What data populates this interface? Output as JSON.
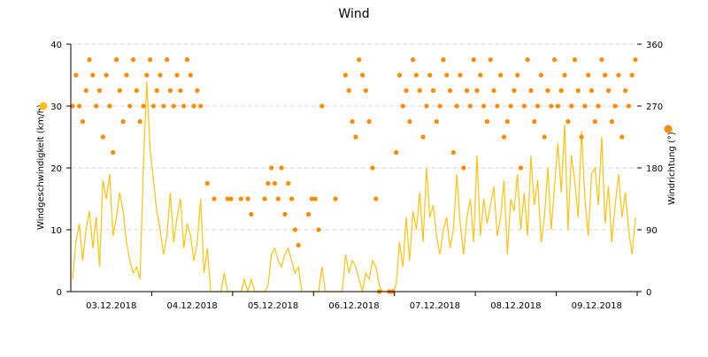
{
  "chart_data": {
    "type": "line",
    "title": "Wind",
    "x_start": "03.12.2018 00:00",
    "x_interval": "1h",
    "x_tick_labels": [
      "03.12.2018",
      "04.12.2018",
      "05.12.2018",
      "06.12.2018",
      "07.12.2018",
      "08.12.2018",
      "09.12.2018"
    ],
    "grid": "horizontal dashed",
    "legend": "beside axis titles",
    "y_left": {
      "label": "Windgeschwindigkeit (km/h)",
      "range": [
        0,
        40
      ],
      "ticks": [
        "0",
        "10",
        "20",
        "30",
        "40"
      ]
    },
    "y_right": {
      "label": "Windrichtung (°)",
      "range": [
        0,
        360
      ],
      "ticks": [
        "0",
        "90",
        "180",
        "270",
        "360"
      ]
    },
    "series": [
      {
        "name": "Windgeschwindigkeit (km/h)",
        "type": "line",
        "axis": "left",
        "color": "#FFC20E",
        "values": [
          2,
          8,
          11,
          5,
          10,
          13,
          7,
          12,
          4,
          18,
          15,
          19,
          9,
          12,
          16,
          13,
          8,
          5,
          3,
          4,
          2,
          20,
          34,
          23,
          18,
          13,
          10,
          6,
          9,
          16,
          8,
          12,
          15,
          7,
          11,
          9,
          5,
          8,
          15,
          3,
          7,
          0,
          0,
          0,
          0,
          3,
          0,
          0,
          0,
          0,
          0,
          2,
          0,
          2,
          0,
          0,
          0,
          0,
          1,
          6,
          7,
          5,
          4,
          6,
          7,
          5,
          3,
          4,
          0,
          0,
          0,
          0,
          0,
          0,
          4,
          0,
          0,
          0,
          0,
          0,
          0,
          6,
          3,
          5,
          4,
          2,
          0,
          3,
          2,
          5,
          4,
          1,
          0,
          0,
          0,
          0,
          1,
          8,
          4,
          12,
          5,
          13,
          10,
          16,
          8,
          20,
          12,
          14,
          9,
          6,
          10,
          12,
          7,
          10,
          19,
          11,
          6,
          12,
          15,
          8,
          22,
          9,
          15,
          11,
          14,
          17,
          9,
          12,
          18,
          6,
          15,
          13,
          19,
          10,
          16,
          9,
          22,
          14,
          18,
          8,
          12,
          20,
          10,
          17,
          24,
          16,
          27,
          10,
          22,
          18,
          12,
          26,
          15,
          9,
          19,
          20,
          14,
          25,
          11,
          17,
          8,
          14,
          19,
          12,
          16,
          10,
          6,
          12
        ]
      },
      {
        "name": "Windrichtung (°)",
        "type": "scatter",
        "axis": "right",
        "color": "#FF8C00",
        "values": [
          270,
          315,
          270,
          247.5,
          292.5,
          337.5,
          315,
          270,
          292.5,
          225,
          315,
          270,
          202.5,
          337.5,
          292.5,
          247.5,
          315,
          270,
          337.5,
          292.5,
          247.5,
          270,
          315,
          337.5,
          270,
          292.5,
          315,
          270,
          337.5,
          292.5,
          270,
          315,
          292.5,
          270,
          337.5,
          315,
          270,
          292.5,
          270,
          null,
          157.5,
          null,
          135,
          null,
          null,
          null,
          135,
          135,
          null,
          null,
          135,
          null,
          135,
          112.5,
          null,
          null,
          null,
          135,
          157.5,
          180,
          157.5,
          135,
          180,
          112.5,
          157.5,
          135,
          90,
          67.5,
          null,
          null,
          112.5,
          135,
          135,
          90,
          270,
          null,
          null,
          null,
          135,
          null,
          null,
          315,
          292.5,
          247.5,
          225,
          337.5,
          315,
          292.5,
          247.5,
          180,
          135,
          0,
          null,
          null,
          0,
          0,
          202.5,
          315,
          270,
          292.5,
          247.5,
          337.5,
          315,
          292.5,
          225,
          270,
          315,
          292.5,
          247.5,
          270,
          337.5,
          315,
          292.5,
          202.5,
          270,
          315,
          180,
          292.5,
          270,
          337.5,
          292.5,
          315,
          270,
          247.5,
          337.5,
          292.5,
          270,
          315,
          225,
          247.5,
          270,
          292.5,
          315,
          180,
          270,
          337.5,
          292.5,
          247.5,
          270,
          315,
          225,
          292.5,
          270,
          337.5,
          270,
          292.5,
          315,
          247.5,
          270,
          337.5,
          292.5,
          225,
          270,
          315,
          292.5,
          247.5,
          270,
          337.5,
          315,
          292.5,
          247.5,
          270,
          315,
          225,
          292.5,
          270,
          315,
          337.5
        ]
      }
    ]
  }
}
